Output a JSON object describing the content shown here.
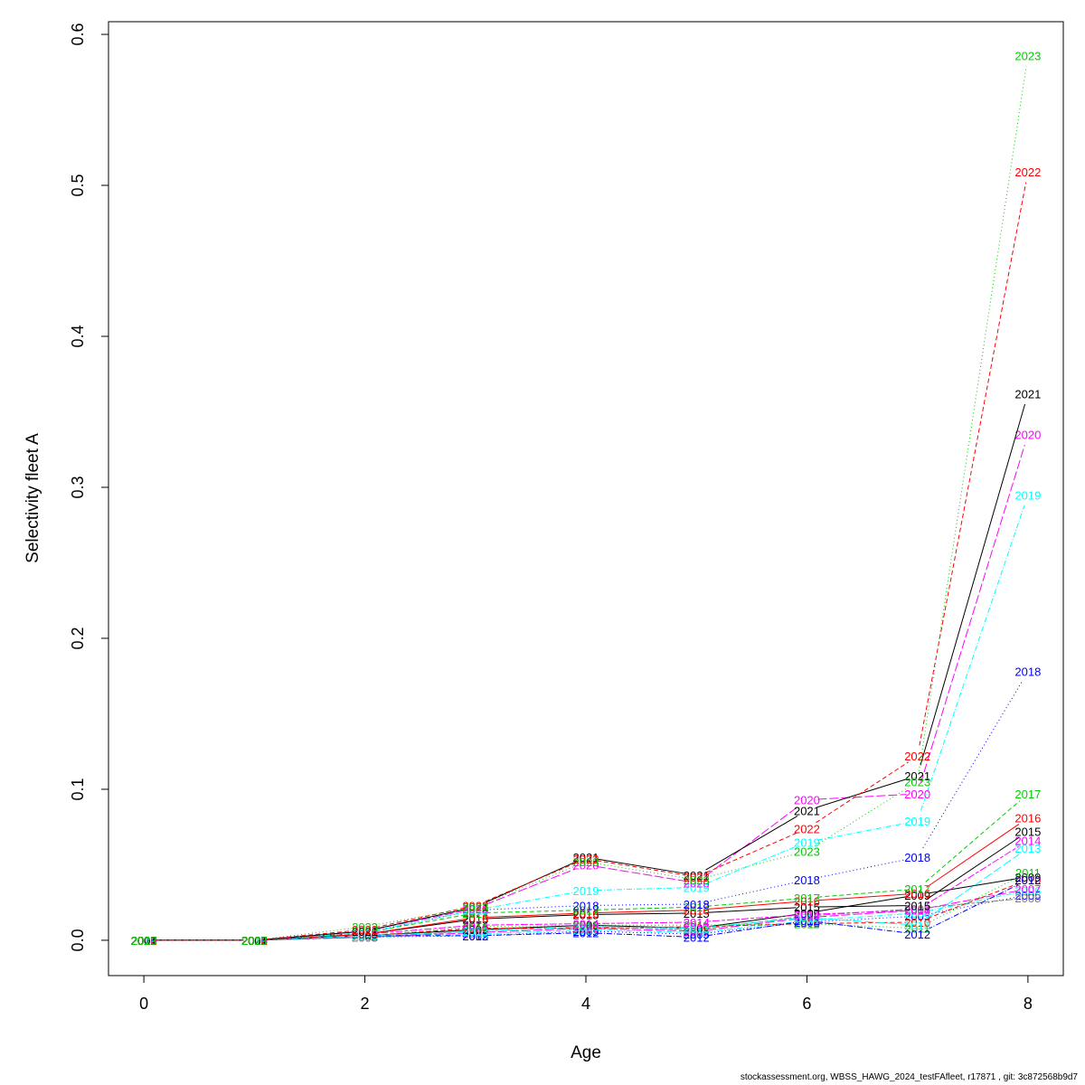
{
  "chart_data": {
    "type": "line",
    "title": "",
    "xlabel": "Age",
    "ylabel": "Selectivity fleet A",
    "xlim": [
      -0.32,
      8.32
    ],
    "ylim": [
      -0.0234,
      0.6084
    ],
    "xticks": [
      0,
      2,
      4,
      6,
      8
    ],
    "yticks": [
      0.0,
      0.1,
      0.2,
      0.3,
      0.4,
      0.5,
      0.6
    ],
    "ytick_labels": [
      "0.0",
      "0.1",
      "0.2",
      "0.3",
      "0.4",
      "0.5",
      "0.6"
    ],
    "grid": false,
    "legend": "none",
    "points_labeled_with_year": true,
    "x": [
      0,
      1,
      2,
      3,
      4,
      5,
      6,
      7,
      8
    ],
    "series": [
      {
        "name": "2005",
        "color": "#0000FF",
        "dash": "1,3",
        "values": [
          0,
          0,
          0.002,
          0.003,
          0.006,
          0.004,
          0.012,
          0.016,
          0.03
        ]
      },
      {
        "name": "2006",
        "color": "#00FFFF",
        "dash": "6,2,1,2",
        "values": [
          0,
          0,
          0.002,
          0.004,
          0.007,
          0.005,
          0.013,
          0.018,
          0.033
        ]
      },
      {
        "name": "2007",
        "color": "#FF00FF",
        "dash": "10,3",
        "values": [
          0,
          0,
          0.002,
          0.005,
          0.008,
          0.006,
          0.015,
          0.02,
          0.034
        ]
      },
      {
        "name": "2008",
        "color": "#808080",
        "dash": "4,2,8,2",
        "values": [
          0,
          0,
          0.002,
          0.006,
          0.009,
          0.007,
          0.016,
          0.021,
          0.028
        ]
      },
      {
        "name": "2009",
        "color": "#000000",
        "dash": "",
        "values": [
          0,
          0,
          0.003,
          0.007,
          0.01,
          0.008,
          0.018,
          0.03,
          0.042
        ]
      },
      {
        "name": "2010",
        "color": "#FF0000",
        "dash": "5,3",
        "values": [
          0,
          0,
          0.003,
          0.008,
          0.008,
          0.009,
          0.011,
          0.012,
          0.04
        ]
      },
      {
        "name": "2011",
        "color": "#00CD00",
        "dash": "1,3",
        "values": [
          0,
          0,
          0.003,
          0.009,
          0.01,
          0.01,
          0.011,
          0.008,
          0.045
        ]
      },
      {
        "name": "2012",
        "color": "#0000FF",
        "dash": "6,2,1,2",
        "values": [
          0,
          0,
          0.003,
          0.003,
          0.005,
          0.002,
          0.013,
          0.004,
          0.04
        ]
      },
      {
        "name": "2013",
        "color": "#00FFFF",
        "dash": "10,3",
        "values": [
          0,
          0,
          0.003,
          0.006,
          0.009,
          0.008,
          0.015,
          0.01,
          0.061
        ]
      },
      {
        "name": "2014",
        "color": "#FF00FF",
        "dash": "4,2,8,2",
        "values": [
          0,
          0,
          0.004,
          0.01,
          0.011,
          0.012,
          0.017,
          0.02,
          0.066
        ]
      },
      {
        "name": "2015",
        "color": "#000000",
        "dash": "",
        "values": [
          0,
          0,
          0.004,
          0.014,
          0.017,
          0.018,
          0.022,
          0.023,
          0.072
        ]
      },
      {
        "name": "2016",
        "color": "#FF0000",
        "dash": "",
        "values": [
          0,
          0,
          0.004,
          0.015,
          0.018,
          0.02,
          0.026,
          0.031,
          0.081
        ]
      },
      {
        "name": "2017",
        "color": "#00CD00",
        "dash": "5,3",
        "values": [
          0,
          0,
          0.005,
          0.018,
          0.02,
          0.022,
          0.028,
          0.034,
          0.097
        ]
      },
      {
        "name": "2018",
        "color": "#0000FF",
        "dash": "1,3",
        "values": [
          0,
          0,
          0.005,
          0.02,
          0.023,
          0.024,
          0.04,
          0.055,
          0.178
        ]
      },
      {
        "name": "2019",
        "color": "#00FFFF",
        "dash": "6,2,1,2",
        "values": [
          0,
          0,
          0.005,
          0.02,
          0.033,
          0.035,
          0.065,
          0.079,
          0.295
        ]
      },
      {
        "name": "2020",
        "color": "#FF00FF",
        "dash": "10,3",
        "values": [
          0,
          0,
          0.006,
          0.021,
          0.05,
          0.038,
          0.093,
          0.097,
          0.335
        ]
      },
      {
        "name": "2021",
        "color": "#000000",
        "dash": "",
        "values": [
          0,
          0,
          0.006,
          0.022,
          0.055,
          0.043,
          0.086,
          0.109,
          0.362
        ]
      },
      {
        "name": "2022",
        "color": "#FF0000",
        "dash": "5,3",
        "values": [
          0,
          0,
          0.007,
          0.023,
          0.054,
          0.042,
          0.074,
          0.122,
          0.509
        ]
      },
      {
        "name": "2023",
        "color": "#00CD00",
        "dash": "1,3",
        "values": [
          0,
          0,
          0.009,
          0.022,
          0.052,
          0.04,
          0.059,
          0.105,
          0.586
        ]
      }
    ]
  },
  "footer": "stockassessment.org, WBSS_HAWG_2024_testFAfleet, r17871 , git: 3c872568b9d7"
}
